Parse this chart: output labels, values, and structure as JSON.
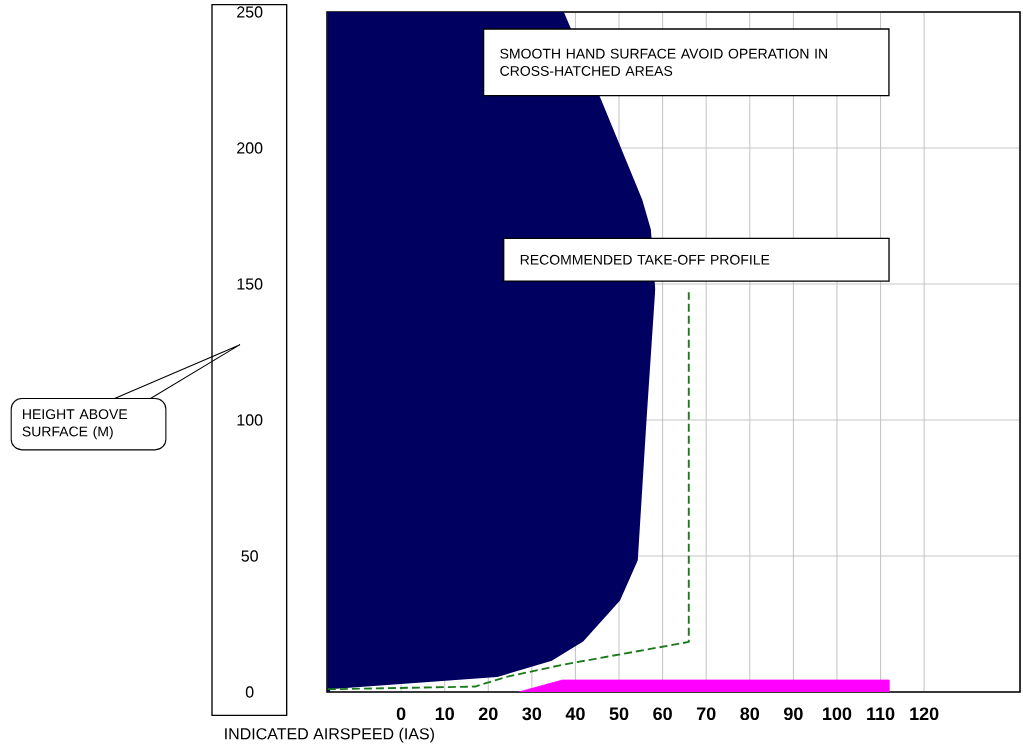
{
  "chart_data": {
    "type": "area",
    "xlabel": "INDICATED AIRSPEED (IAS)",
    "annotations": [
      "SMOOTH HAND SURFACE AVOID OPERATION IN CROSS-HATCHED AREAS",
      "RECOMMENDED TAKE-OFF PROFILE",
      "HEIGHT ABOVE SURFACE (M)"
    ],
    "xlim": [
      -17,
      142
    ],
    "ylim": [
      0,
      250
    ],
    "xticks": [
      0,
      10,
      20,
      30,
      40,
      50,
      60,
      70,
      80,
      90,
      100,
      110,
      120
    ],
    "yticks": [
      0,
      50,
      100,
      150,
      200,
      250
    ],
    "grid": true,
    "series": [
      {
        "color": "#000060",
        "x": [
          -16.6,
          22,
          34.5,
          41.6,
          50,
          54,
          56,
          58,
          57,
          55,
          45.5,
          37,
          -16.6
        ],
        "values": [
          1.5,
          6,
          12,
          19,
          34,
          48.5,
          100,
          148,
          170,
          181,
          218,
          250,
          250
        ]
      },
      {
        "type": "line",
        "color": "#1a7a1a",
        "line_style": "dashed",
        "x": [
          -16.8,
          17,
          24,
          37,
          66,
          66
        ],
        "values": [
          1,
          2,
          5.5,
          10,
          18.4,
          147
        ]
      },
      {
        "type": "area",
        "color": "#ff00ff",
        "x": [
          27,
          37,
          112
        ],
        "values": [
          0,
          4.4,
          4.4
        ]
      }
    ]
  }
}
